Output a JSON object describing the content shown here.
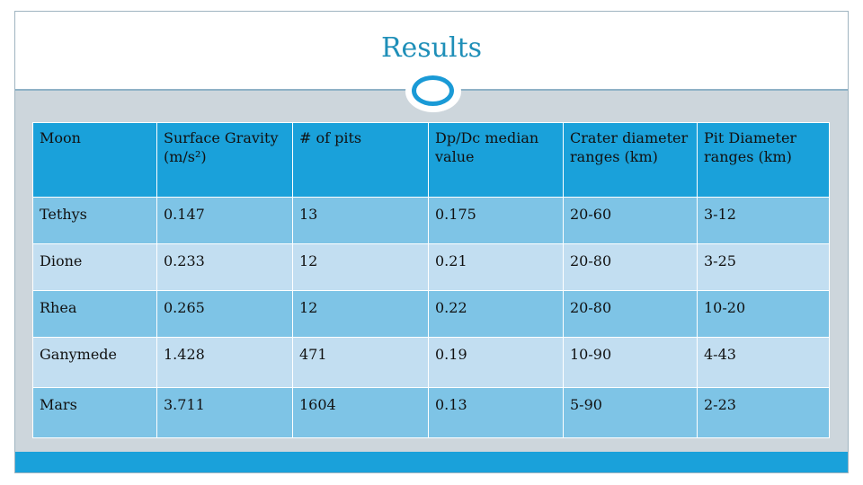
{
  "slide": {
    "title": "Results"
  },
  "table": {
    "headers": [
      "Moon",
      "Surface Gravity (m/s²)",
      "# of pits",
      "Dp/Dc median value",
      "Crater diameter ranges (km)",
      "Pit Diameter ranges (km)"
    ],
    "rows": [
      [
        "Tethys",
        "0.147",
        "13",
        "0.175",
        "20-60",
        "3-12"
      ],
      [
        "Dione",
        "0.233",
        "12",
        "0.21",
        "20-80",
        "3-25"
      ],
      [
        "Rhea",
        "0.265",
        "12",
        "0.22",
        "20-80",
        "10-20"
      ],
      [
        "Ganymede",
        "1.428",
        "471",
        "0.19",
        "10-90",
        "4-43"
      ],
      [
        "Mars",
        "3.711",
        "1604",
        "0.13",
        "5-90",
        "2-23"
      ]
    ]
  },
  "colors": {
    "title": "#1f8fb8",
    "header_bg": "#1aa1da",
    "row_dark": "#7ec4e6",
    "row_light": "#c2def1",
    "frame_bg": "#cdd6dc"
  },
  "icons": {
    "title_badge": "ring-ornament-icon"
  }
}
